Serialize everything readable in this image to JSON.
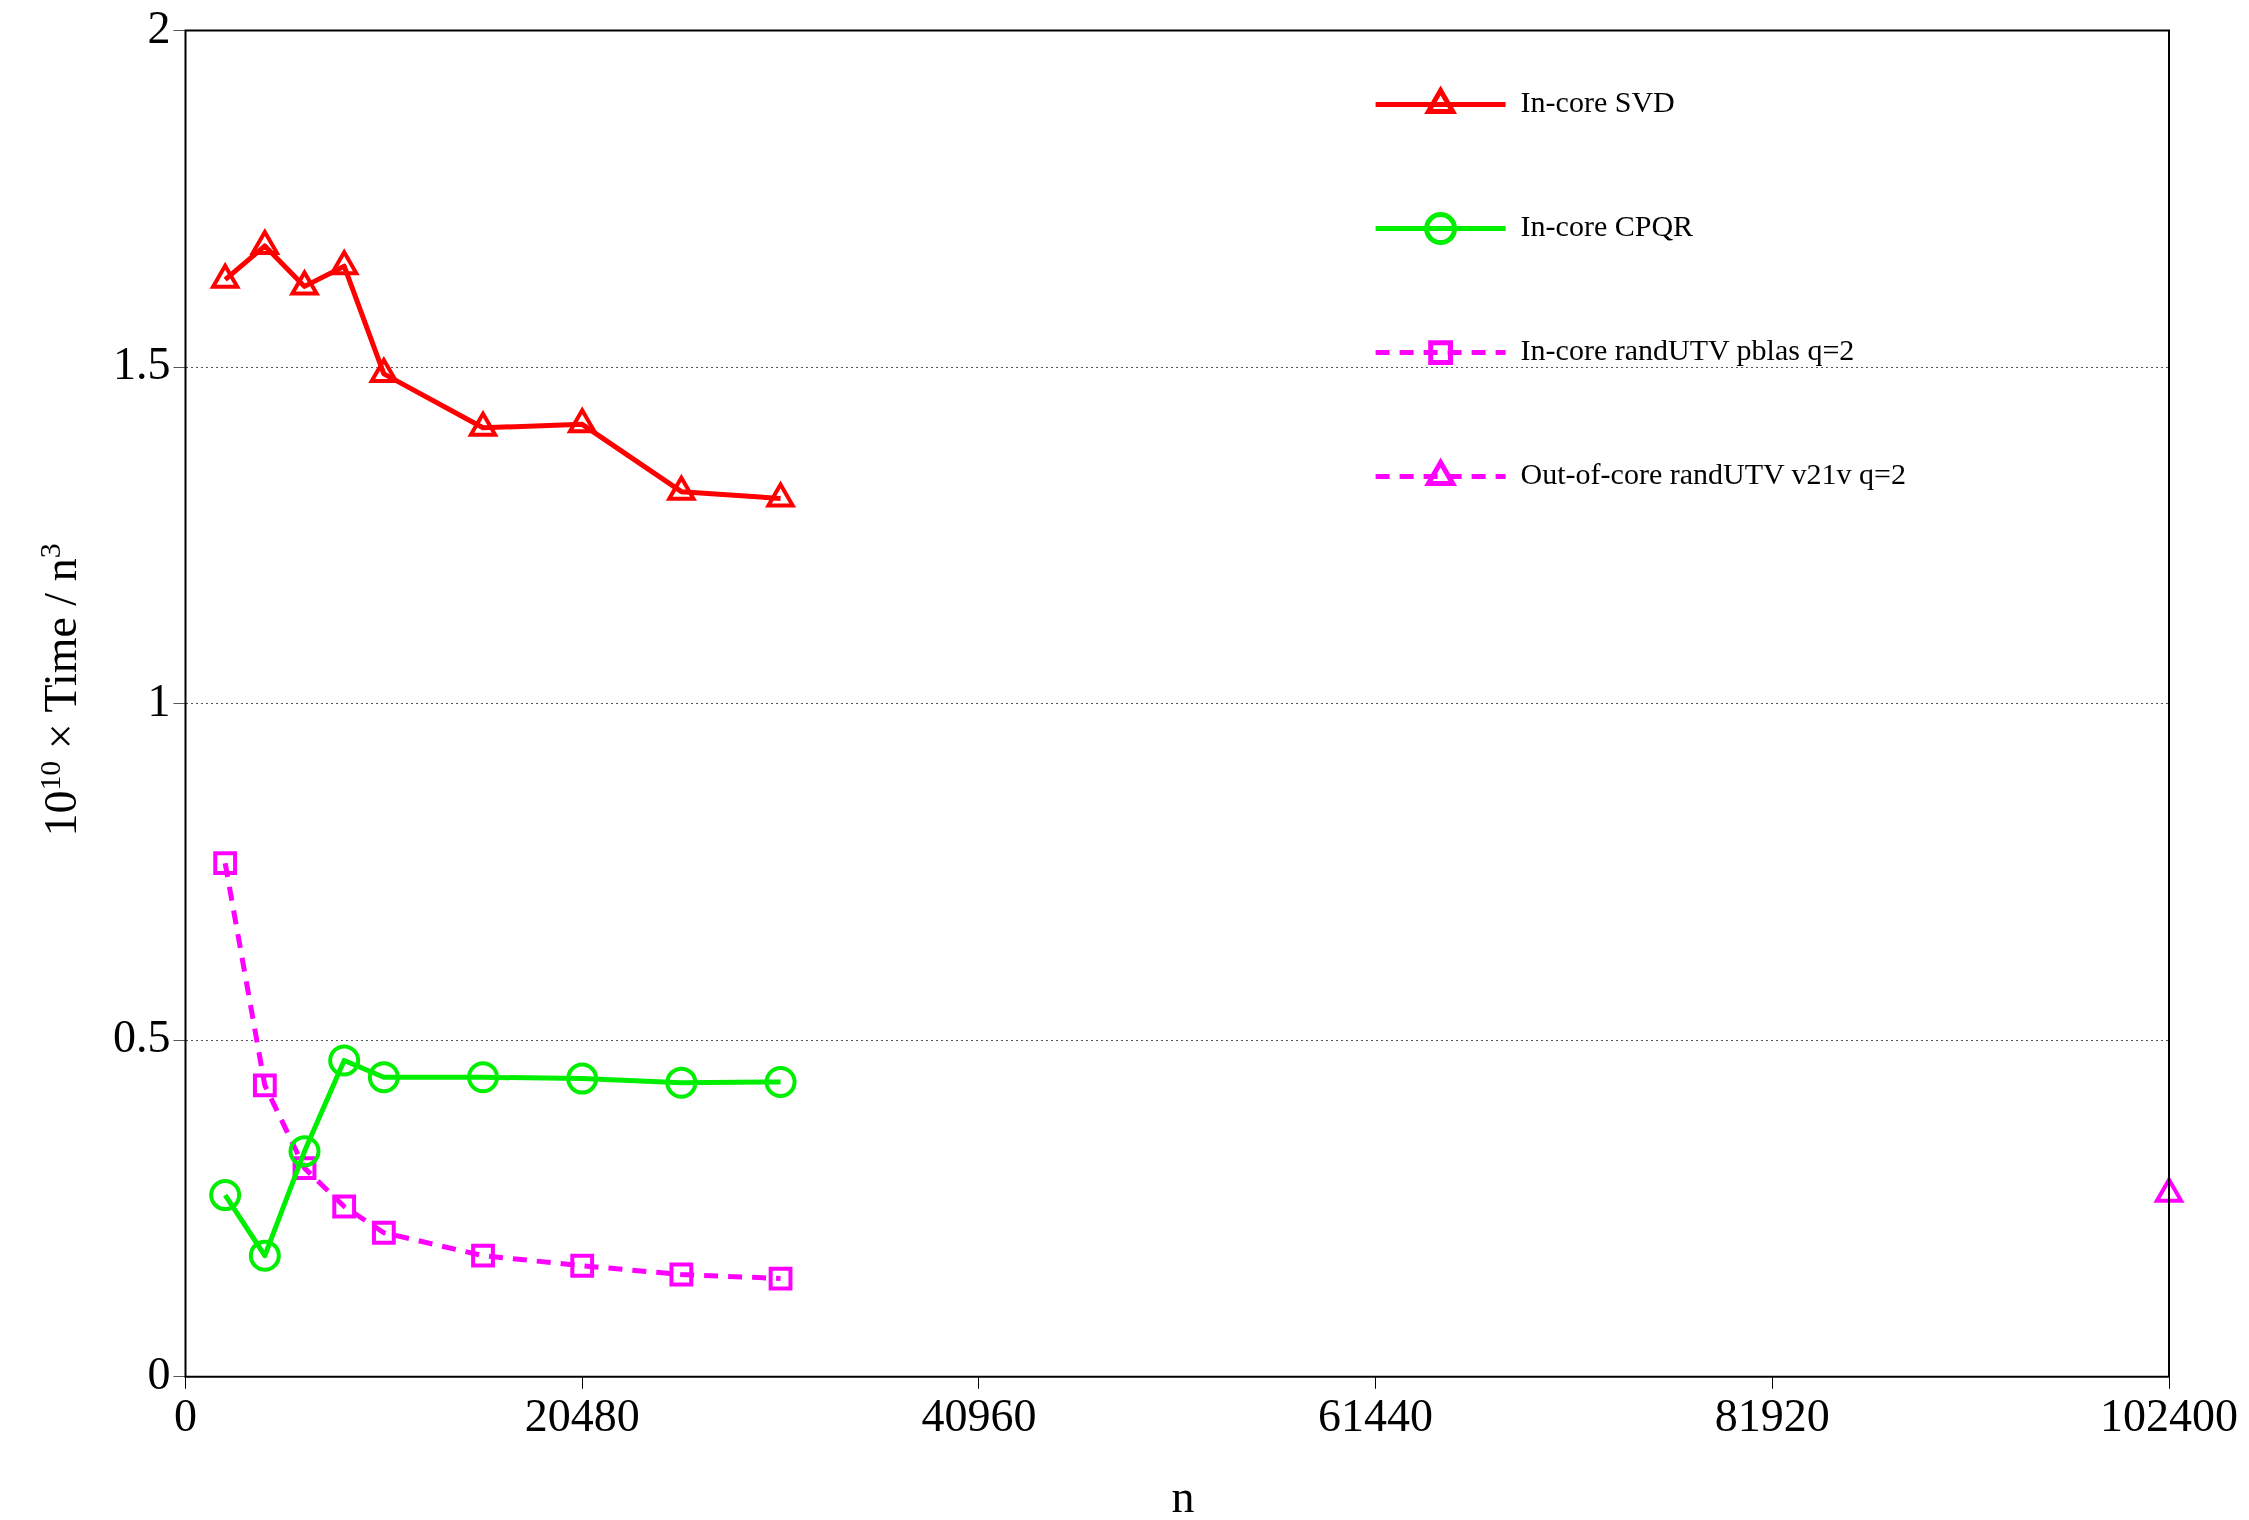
{
  "chart_data": {
    "type": "line",
    "xlabel": "n",
    "ylabel": "10$^{10}$ × Time / n$^{3}$",
    "xlim": [
      0,
      102400
    ],
    "xticks": [
      0,
      20480,
      40960,
      61440,
      81920,
      102400
    ],
    "ylim": [
      0,
      2
    ],
    "yticks": [
      0,
      0.5,
      1,
      1.5,
      2
    ],
    "grid": "y",
    "legend": "top right",
    "series": [
      {
        "name": "In-core SVD",
        "color": "#ff0000",
        "marker": "triangle",
        "line_style": "solid",
        "x": [
          2048,
          4096,
          6144,
          8192,
          10240,
          15360,
          20480,
          25600,
          30720
        ],
        "values": [
          1.63,
          1.68,
          1.62,
          1.65,
          1.49,
          1.41,
          1.415,
          1.315,
          1.305
        ]
      },
      {
        "name": "In-core CPQR",
        "color": "#00ee00",
        "marker": "circle",
        "line_style": "solid",
        "x": [
          2048,
          4096,
          6144,
          8192,
          10240,
          15360,
          20480,
          25600,
          30720
        ],
        "values": [
          0.27,
          0.18,
          0.335,
          0.47,
          0.445,
          0.445,
          0.443,
          0.437,
          0.438
        ]
      },
      {
        "name": "In-core randUTV pblas q=2",
        "color": "#ff00ff",
        "marker": "square",
        "line_style": "dashed",
        "x": [
          2048,
          4096,
          6144,
          8192,
          10240,
          15360,
          20480,
          25600,
          30720
        ],
        "values": [
          0.763,
          0.433,
          0.31,
          0.253,
          0.214,
          0.18,
          0.165,
          0.152,
          0.146
        ]
      },
      {
        "name": "Out-of-core randUTV v21v q=2",
        "color": "#ff00ff",
        "marker": "triangle",
        "line_style": "dashed",
        "x": [
          102400
        ],
        "values": [
          0.272
        ]
      }
    ]
  }
}
